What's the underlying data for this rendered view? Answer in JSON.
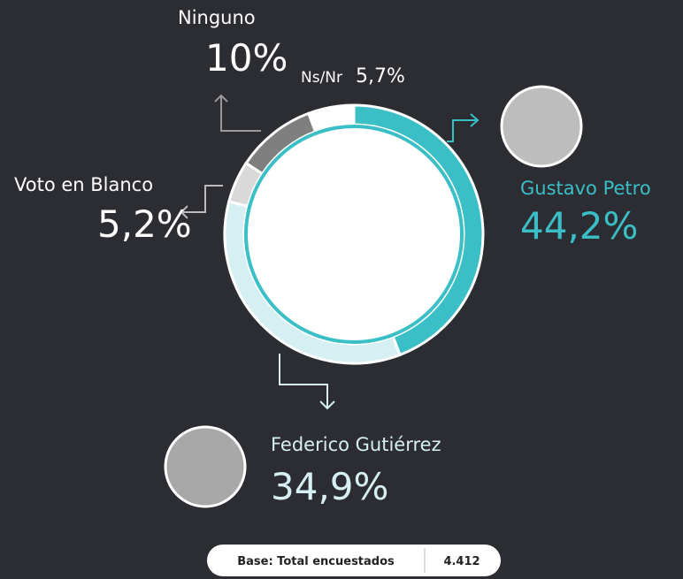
{
  "chart_data": {
    "type": "donut",
    "categories": [
      "Gustavo Petro",
      "Federico Gutiérrez",
      "Voto en Blanco",
      "Ninguno",
      "Ns/Nr"
    ],
    "values": [
      44.2,
      34.9,
      5.2,
      10,
      5.7
    ],
    "value_labels": [
      "44,2%",
      "34,9%",
      "5,2%",
      "10%",
      "5,7%"
    ],
    "colors": [
      "#3bbfc6",
      "#d6eff3",
      "#d9d9d9",
      "#7f7f7f",
      "#ffffff"
    ],
    "base_label": "Base: Total encuestados",
    "base_value": "4.412"
  }
}
